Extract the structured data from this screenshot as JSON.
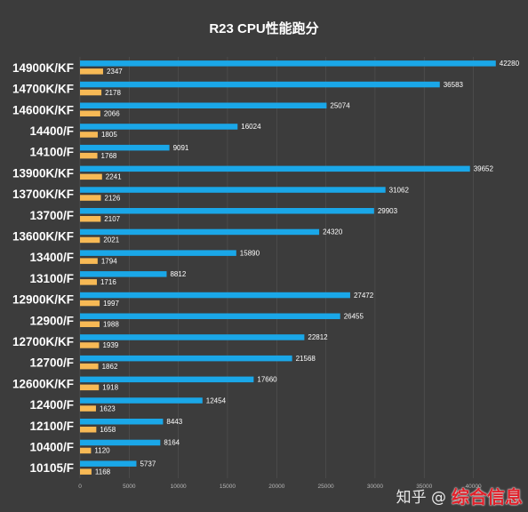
{
  "watermark": {
    "platform": "知乎 @",
    "brand": "综合信息"
  },
  "chart_data": {
    "type": "bar",
    "orientation": "horizontal",
    "title": "R23 CPU性能跑分",
    "categories": [
      "14900K/KF",
      "14700K/KF",
      "14600K/KF",
      "14400/F",
      "14100/F",
      "13900K/KF",
      "13700K/KF",
      "13700/F",
      "13600K/KF",
      "13400/F",
      "13100/F",
      "12900K/KF",
      "12900/F",
      "12700K/KF",
      "12700/F",
      "12600K/KF",
      "12400/F",
      "12100/F",
      "10400/F",
      "10105/F"
    ],
    "series": [
      {
        "values": [
          42280,
          36583,
          25074,
          16024,
          9091,
          39652,
          31062,
          29903,
          24320,
          15890,
          8812,
          27472,
          26455,
          22812,
          21568,
          17660,
          12454,
          8443,
          8164,
          5737
        ]
      },
      {
        "values": [
          2347,
          2178,
          2066,
          1805,
          1768,
          2241,
          2126,
          2107,
          2021,
          1794,
          1716,
          1997,
          1988,
          1939,
          1862,
          1918,
          1623,
          1658,
          1120,
          1168
        ]
      }
    ],
    "colors": [
      "#1aa7e8",
      "#f7b955"
    ],
    "xticks": [
      0,
      5000,
      10000,
      15000,
      20000,
      25000,
      30000,
      35000,
      40000
    ],
    "xtick_labels": [
      "0",
      "5000",
      "10000",
      "15000",
      "20000",
      "25000",
      "30000",
      "35000",
      "40000"
    ],
    "xlim": [
      0,
      42300
    ],
    "xlabel": "",
    "ylabel": "",
    "grid": true,
    "legend": "none"
  }
}
